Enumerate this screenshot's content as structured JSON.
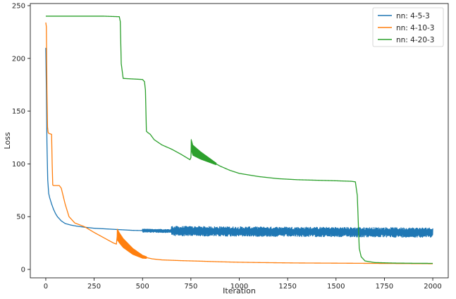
{
  "chart_data": {
    "type": "line",
    "title": "",
    "xlabel": "Iteration",
    "ylabel": "Loss",
    "xlim": [
      -80,
      2080
    ],
    "ylim": [
      -8,
      252
    ],
    "xticks": [
      0,
      250,
      500,
      750,
      1000,
      1250,
      1500,
      1750,
      2000
    ],
    "yticks": [
      0,
      50,
      100,
      150,
      200,
      250
    ],
    "grid": false,
    "legend_position": "top-right",
    "series": [
      {
        "name": "nn: 4-5-3",
        "color": "#1f77b4",
        "x": [
          0,
          3,
          6,
          10,
          15,
          20,
          30,
          40,
          50,
          60,
          80,
          100,
          130,
          160,
          200,
          250,
          300,
          350,
          400,
          450,
          500,
          550,
          600,
          650,
          700,
          800,
          900,
          1000,
          1100,
          1200,
          1300,
          1400,
          1500,
          1600,
          1700,
          1800,
          1900,
          2000
        ],
        "y": [
          210,
          170,
          120,
          85,
          72,
          68,
          62,
          57,
          53,
          50,
          46,
          43.5,
          42,
          41,
          40,
          39,
          38.5,
          38,
          37.5,
          37,
          36.8,
          36.6,
          36.5,
          36.4,
          36.3,
          36.2,
          36,
          35.9,
          35.8,
          35.7,
          35.6,
          35.5,
          35.4,
          35.3,
          35.2,
          35.1,
          35,
          35
        ],
        "noise": [
          {
            "from": 500,
            "to": 650,
            "amplitude": 1.5
          },
          {
            "from": 650,
            "to": 2000,
            "amplitude": 4.5
          }
        ]
      },
      {
        "name": "nn: 4-10-3",
        "color": "#ff7f0e",
        "x": [
          0,
          3,
          6,
          9,
          12,
          15,
          30,
          33,
          36,
          40,
          70,
          80,
          100,
          120,
          150,
          200,
          250,
          300,
          350,
          365,
          370,
          380,
          400,
          450,
          500,
          550,
          600,
          700,
          800,
          900,
          1000,
          1100,
          1200,
          1300,
          1400,
          1500,
          1600,
          1700,
          1800,
          1900,
          2000
        ],
        "y": [
          234,
          230,
          170,
          135,
          130,
          129,
          128,
          100,
          80,
          79.5,
          79.5,
          77,
          62,
          50,
          44,
          40.5,
          35,
          30,
          25,
          24,
          33,
          30,
          25,
          17,
          12,
          10,
          9,
          8.3,
          7.8,
          7.2,
          6.8,
          6.5,
          6.3,
          6.1,
          6,
          5.9,
          5.8,
          5.7,
          5.6,
          5.5,
          5.4
        ],
        "noise": [
          {
            "from": 370,
            "to": 520,
            "amplitude": 5.0
          }
        ]
      },
      {
        "name": "nn: 4-20-3",
        "color": "#2ca02c",
        "x": [
          0,
          100,
          200,
          300,
          380,
          385,
          390,
          400,
          500,
          510,
          515,
          520,
          525,
          540,
          560,
          600,
          650,
          700,
          745,
          750,
          752,
          760,
          800,
          850,
          900,
          950,
          1000,
          1100,
          1200,
          1300,
          1400,
          1500,
          1580,
          1600,
          1610,
          1620,
          1630,
          1650,
          1700,
          1800,
          1900,
          2000
        ],
        "y": [
          240,
          240,
          240,
          240,
          239.5,
          235,
          195,
          181,
          180,
          178,
          170,
          131,
          130,
          128,
          123,
          118,
          114,
          109,
          104,
          106,
          118,
          113,
          108,
          103,
          98,
          94,
          91,
          88,
          86,
          85,
          84.5,
          84,
          83.5,
          83,
          70,
          20,
          12,
          8,
          6.5,
          6,
          5.8,
          5.7
        ],
        "noise": [
          {
            "from": 752,
            "to": 880,
            "amplitude": 5.0
          }
        ]
      }
    ]
  }
}
